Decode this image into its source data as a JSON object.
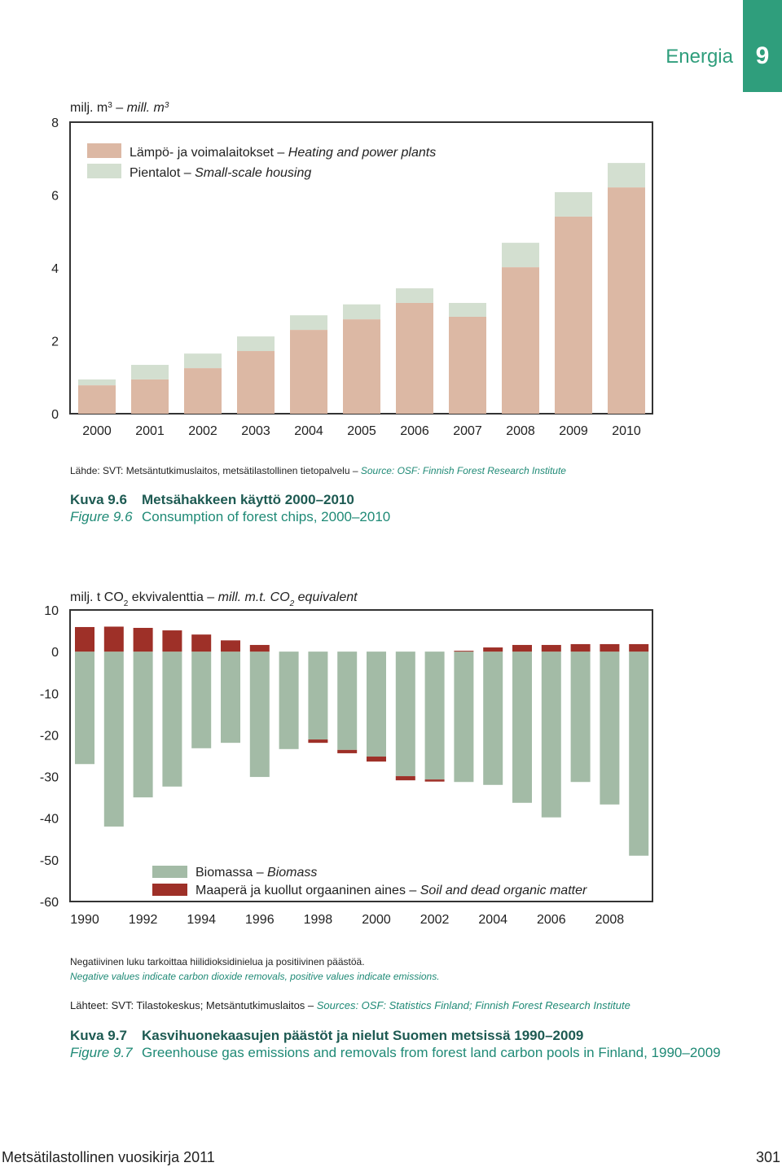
{
  "header": {
    "section": "Energia",
    "number": "9"
  },
  "chart_data": [
    {
      "type": "bar",
      "stacked": true,
      "y_label": [
        "milj. m",
        "3",
        "–",
        "mill. m",
        "3"
      ],
      "categories": [
        "2000",
        "2001",
        "2002",
        "2003",
        "2004",
        "2005",
        "2006",
        "2007",
        "2008",
        "2009",
        "2010"
      ],
      "series": [
        {
          "name": "Lämpö- ja voimalaitokset –",
          "name_en": "Heating and power plants",
          "color": "#dcb8a4",
          "values": [
            0.78,
            0.94,
            1.25,
            1.72,
            2.3,
            2.59,
            3.04,
            2.66,
            4.02,
            5.41,
            6.21
          ]
        },
        {
          "name": "Pientalot –",
          "name_en": "Small-scale housing",
          "color": "#d3dfd0",
          "values": [
            0.16,
            0.4,
            0.4,
            0.4,
            0.4,
            0.41,
            0.4,
            0.38,
            0.67,
            0.67,
            0.67
          ]
        }
      ],
      "ylim": [
        0,
        8
      ],
      "yticks": [
        0,
        2,
        4,
        6,
        8
      ],
      "grid": false
    },
    {
      "type": "bar",
      "stacked": true,
      "y_label": [
        "milj. t CO",
        "2",
        "ekvivalenttia –",
        "mill. m.t. CO",
        "2",
        "equivalent"
      ],
      "categories": [
        "1990",
        null,
        "1992",
        null,
        "1994",
        null,
        "1996",
        null,
        "1998",
        null,
        "2000",
        null,
        "2002",
        null,
        "2004",
        null,
        "2006",
        null,
        "2008",
        null
      ],
      "series": [
        {
          "name": "Biomassa –",
          "name_en": "Biomass",
          "color": "#a3bba6",
          "values": [
            -27.0,
            -42.0,
            -35.0,
            -32.4,
            -23.2,
            -21.9,
            -30.1,
            -23.4,
            -21.1,
            -23.6,
            -25.2,
            -29.9,
            -30.7,
            -31.3,
            -32.0,
            -36.3,
            -39.8,
            -31.3,
            -36.7,
            -49.0
          ]
        },
        {
          "name": "Maaperä ja kuollut orgaaninen aines –",
          "name_en": "Soil and dead organic matter",
          "color": "#9e3028",
          "values": [
            5.9,
            6.0,
            5.7,
            5.1,
            4.1,
            2.7,
            1.6,
            0,
            -0.8,
            -0.8,
            -1.2,
            -1.0,
            -0.5,
            0.2,
            1.0,
            1.6,
            1.6,
            1.8,
            1.8,
            1.8
          ]
        }
      ],
      "ylim": [
        -60,
        10
      ],
      "yticks": [
        -60,
        -50,
        -40,
        -30,
        -20,
        -10,
        0,
        10
      ],
      "grid": false
    }
  ],
  "figure_9_6": {
    "source_fi": "Lähde: SVT: Metsäntutkimuslaitos, metsätilastollinen tietopalvelu –",
    "source_en": "Source: OSF: Finnish Forest Research Institute",
    "label_fi": "Kuva 9.6",
    "title_fi": "Metsähakkeen käyttö 2000–2010",
    "label_en": "Figure 9.6",
    "title_en": "Consumption of forest chips, 2000–2010"
  },
  "figure_9_7": {
    "note_fi": "Negatiivinen luku tarkoittaa hiilidioksidinielua ja positiivinen päästöä.",
    "note_en": "Negative values indicate carbon dioxide removals, positive values indicate emissions.",
    "source_fi": "Lähteet: SVT: Tilastokeskus; Metsäntutkimuslaitos –",
    "source_en": "Sources: OSF: Statistics Finland; Finnish Forest Research Institute",
    "label_fi": "Kuva 9.7",
    "title_fi": "Kasvihuonekaasujen päästöt ja nielut Suomen metsissä 1990–2009",
    "label_en": "Figure 9.7",
    "title_en": "Greenhouse gas emissions and removals from forest land carbon pools in Finland, 1990–2009"
  },
  "footer": {
    "publication": "Metsätilastollinen vuosikirja 2011",
    "page": "301"
  }
}
